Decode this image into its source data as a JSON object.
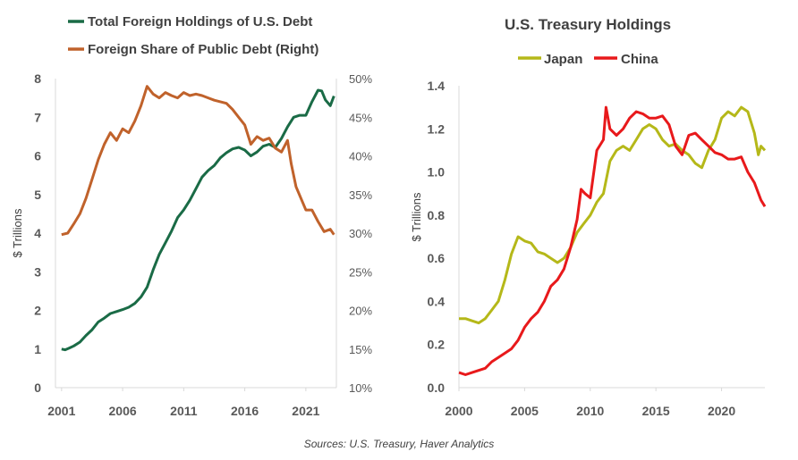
{
  "chart_data": [
    {
      "type": "line",
      "title": "",
      "xlabel": "",
      "ylabel": "$ Trillions",
      "ylim": [
        0,
        8
      ],
      "y2lim": [
        10,
        50
      ],
      "x_ticks": [
        "2001",
        "2006",
        "2011",
        "2016",
        "2021"
      ],
      "y_ticks": [
        "0",
        "1",
        "2",
        "3",
        "4",
        "5",
        "6",
        "7",
        "8"
      ],
      "y2_ticks": [
        "10%",
        "15%",
        "20%",
        "25%",
        "30%",
        "35%",
        "40%",
        "45%",
        "50%"
      ],
      "series": [
        {
          "name": "Total Foreign Holdings of U.S. Debt",
          "axis": "left",
          "color": "#1a6b46",
          "points": [
            [
              2001.0,
              1.0
            ],
            [
              2001.3,
              0.98
            ],
            [
              2001.6,
              1.02
            ],
            [
              2002.0,
              1.08
            ],
            [
              2002.5,
              1.18
            ],
            [
              2003.0,
              1.35
            ],
            [
              2003.5,
              1.5
            ],
            [
              2004.0,
              1.7
            ],
            [
              2004.5,
              1.8
            ],
            [
              2005.0,
              1.92
            ],
            [
              2005.5,
              1.97
            ],
            [
              2006.0,
              2.02
            ],
            [
              2006.5,
              2.08
            ],
            [
              2007.0,
              2.18
            ],
            [
              2007.5,
              2.35
            ],
            [
              2008.0,
              2.6
            ],
            [
              2008.5,
              3.05
            ],
            [
              2009.0,
              3.45
            ],
            [
              2009.5,
              3.75
            ],
            [
              2010.0,
              4.05
            ],
            [
              2010.5,
              4.4
            ],
            [
              2011.0,
              4.6
            ],
            [
              2011.5,
              4.85
            ],
            [
              2012.0,
              5.15
            ],
            [
              2012.5,
              5.45
            ],
            [
              2013.0,
              5.62
            ],
            [
              2013.5,
              5.75
            ],
            [
              2014.0,
              5.95
            ],
            [
              2014.5,
              6.08
            ],
            [
              2015.0,
              6.18
            ],
            [
              2015.5,
              6.22
            ],
            [
              2016.0,
              6.15
            ],
            [
              2016.5,
              6.0
            ],
            [
              2017.0,
              6.1
            ],
            [
              2017.5,
              6.25
            ],
            [
              2018.0,
              6.3
            ],
            [
              2018.5,
              6.22
            ],
            [
              2019.0,
              6.45
            ],
            [
              2019.5,
              6.75
            ],
            [
              2020.0,
              7.0
            ],
            [
              2020.5,
              7.05
            ],
            [
              2021.0,
              7.05
            ],
            [
              2021.5,
              7.4
            ],
            [
              2022.0,
              7.7
            ],
            [
              2022.3,
              7.68
            ],
            [
              2022.6,
              7.45
            ],
            [
              2023.0,
              7.3
            ],
            [
              2023.3,
              7.55
            ]
          ]
        },
        {
          "name": "Foreign Share of Public Debt (Right)",
          "axis": "right",
          "color": "#c0622b",
          "points": [
            [
              2001.0,
              29.8
            ],
            [
              2001.5,
              30.0
            ],
            [
              2002.0,
              31.2
            ],
            [
              2002.5,
              32.5
            ],
            [
              2003.0,
              34.5
            ],
            [
              2003.5,
              37.0
            ],
            [
              2004.0,
              39.5
            ],
            [
              2004.5,
              41.5
            ],
            [
              2005.0,
              43.0
            ],
            [
              2005.5,
              42.0
            ],
            [
              2006.0,
              43.5
            ],
            [
              2006.5,
              43.0
            ],
            [
              2007.0,
              44.5
            ],
            [
              2007.5,
              46.5
            ],
            [
              2008.0,
              49.0
            ],
            [
              2008.5,
              48.0
            ],
            [
              2009.0,
              47.5
            ],
            [
              2009.5,
              48.2
            ],
            [
              2010.0,
              47.8
            ],
            [
              2010.5,
              47.5
            ],
            [
              2011.0,
              48.2
            ],
            [
              2011.5,
              47.8
            ],
            [
              2012.0,
              48.0
            ],
            [
              2012.5,
              47.8
            ],
            [
              2013.0,
              47.5
            ],
            [
              2013.5,
              47.2
            ],
            [
              2014.0,
              47.0
            ],
            [
              2014.5,
              46.8
            ],
            [
              2015.0,
              46.0
            ],
            [
              2015.5,
              45.0
            ],
            [
              2016.0,
              44.0
            ],
            [
              2016.5,
              41.5
            ],
            [
              2017.0,
              42.5
            ],
            [
              2017.5,
              42.0
            ],
            [
              2018.0,
              42.3
            ],
            [
              2018.5,
              41.0
            ],
            [
              2019.0,
              40.5
            ],
            [
              2019.5,
              42.0
            ],
            [
              2019.8,
              39.0
            ],
            [
              2020.2,
              36.0
            ],
            [
              2020.6,
              34.5
            ],
            [
              2021.0,
              33.0
            ],
            [
              2021.5,
              33.0
            ],
            [
              2022.0,
              31.5
            ],
            [
              2022.5,
              30.2
            ],
            [
              2023.0,
              30.5
            ],
            [
              2023.3,
              29.8
            ]
          ]
        }
      ]
    },
    {
      "type": "line",
      "title": "U.S. Treasury  Holdings",
      "xlabel": "",
      "ylabel": "$ Trillions",
      "ylim": [
        0,
        1.4
      ],
      "x_ticks": [
        "2000",
        "2005",
        "2010",
        "2015",
        "2020"
      ],
      "y_ticks": [
        "0.0",
        "0.2",
        "0.4",
        "0.6",
        "0.8",
        "1.0",
        "1.2",
        "1.4"
      ],
      "series": [
        {
          "name": "Japan",
          "color": "#b5b819",
          "points": [
            [
              2000.0,
              0.32
            ],
            [
              2000.5,
              0.32
            ],
            [
              2001.0,
              0.31
            ],
            [
              2001.5,
              0.3
            ],
            [
              2002.0,
              0.32
            ],
            [
              2002.5,
              0.36
            ],
            [
              2003.0,
              0.4
            ],
            [
              2003.5,
              0.5
            ],
            [
              2004.0,
              0.62
            ],
            [
              2004.5,
              0.7
            ],
            [
              2005.0,
              0.68
            ],
            [
              2005.5,
              0.67
            ],
            [
              2006.0,
              0.63
            ],
            [
              2006.5,
              0.62
            ],
            [
              2007.0,
              0.6
            ],
            [
              2007.5,
              0.58
            ],
            [
              2008.0,
              0.6
            ],
            [
              2008.5,
              0.65
            ],
            [
              2009.0,
              0.72
            ],
            [
              2009.5,
              0.76
            ],
            [
              2010.0,
              0.8
            ],
            [
              2010.5,
              0.86
            ],
            [
              2011.0,
              0.9
            ],
            [
              2011.5,
              1.05
            ],
            [
              2012.0,
              1.1
            ],
            [
              2012.5,
              1.12
            ],
            [
              2013.0,
              1.1
            ],
            [
              2013.5,
              1.15
            ],
            [
              2014.0,
              1.2
            ],
            [
              2014.5,
              1.22
            ],
            [
              2015.0,
              1.2
            ],
            [
              2015.5,
              1.15
            ],
            [
              2016.0,
              1.12
            ],
            [
              2016.5,
              1.13
            ],
            [
              2017.0,
              1.1
            ],
            [
              2017.5,
              1.08
            ],
            [
              2018.0,
              1.04
            ],
            [
              2018.5,
              1.02
            ],
            [
              2019.0,
              1.1
            ],
            [
              2019.5,
              1.15
            ],
            [
              2020.0,
              1.25
            ],
            [
              2020.5,
              1.28
            ],
            [
              2021.0,
              1.26
            ],
            [
              2021.5,
              1.3
            ],
            [
              2022.0,
              1.28
            ],
            [
              2022.5,
              1.18
            ],
            [
              2022.8,
              1.08
            ],
            [
              2023.0,
              1.12
            ],
            [
              2023.3,
              1.1
            ]
          ]
        },
        {
          "name": "China",
          "color": "#e8191b",
          "points": [
            [
              2000.0,
              0.07
            ],
            [
              2000.5,
              0.06
            ],
            [
              2001.0,
              0.07
            ],
            [
              2001.5,
              0.08
            ],
            [
              2002.0,
              0.09
            ],
            [
              2002.5,
              0.12
            ],
            [
              2003.0,
              0.14
            ],
            [
              2003.5,
              0.16
            ],
            [
              2004.0,
              0.18
            ],
            [
              2004.5,
              0.22
            ],
            [
              2005.0,
              0.28
            ],
            [
              2005.5,
              0.32
            ],
            [
              2006.0,
              0.35
            ],
            [
              2006.5,
              0.4
            ],
            [
              2007.0,
              0.47
            ],
            [
              2007.5,
              0.5
            ],
            [
              2008.0,
              0.55
            ],
            [
              2008.5,
              0.65
            ],
            [
              2009.0,
              0.78
            ],
            [
              2009.3,
              0.92
            ],
            [
              2009.6,
              0.9
            ],
            [
              2010.0,
              0.88
            ],
            [
              2010.5,
              1.1
            ],
            [
              2011.0,
              1.15
            ],
            [
              2011.2,
              1.3
            ],
            [
              2011.5,
              1.2
            ],
            [
              2012.0,
              1.17
            ],
            [
              2012.5,
              1.2
            ],
            [
              2013.0,
              1.25
            ],
            [
              2013.5,
              1.28
            ],
            [
              2014.0,
              1.27
            ],
            [
              2014.5,
              1.25
            ],
            [
              2015.0,
              1.25
            ],
            [
              2015.5,
              1.26
            ],
            [
              2016.0,
              1.22
            ],
            [
              2016.5,
              1.12
            ],
            [
              2017.0,
              1.08
            ],
            [
              2017.5,
              1.17
            ],
            [
              2018.0,
              1.18
            ],
            [
              2018.5,
              1.15
            ],
            [
              2019.0,
              1.12
            ],
            [
              2019.5,
              1.09
            ],
            [
              2020.0,
              1.08
            ],
            [
              2020.5,
              1.06
            ],
            [
              2021.0,
              1.06
            ],
            [
              2021.5,
              1.07
            ],
            [
              2022.0,
              1.0
            ],
            [
              2022.5,
              0.95
            ],
            [
              2023.0,
              0.87
            ],
            [
              2023.3,
              0.84
            ]
          ]
        }
      ]
    }
  ],
  "source": "Sources: U.S. Treasury, Haver Analytics"
}
